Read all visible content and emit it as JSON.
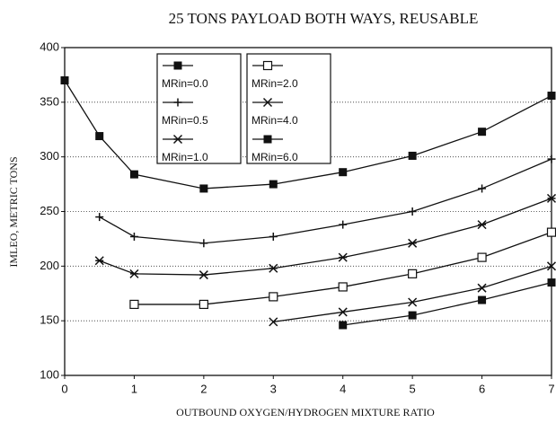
{
  "chart_data": {
    "type": "line",
    "title": "25 TONS PAYLOAD BOTH WAYS, REUSABLE",
    "xlabel": "OUTBOUND OXYGEN/HYDROGEN MIXTURE RATIO",
    "ylabel": "IMLEO, METRIC TONS",
    "x": [
      0,
      0.5,
      1,
      2,
      3,
      4,
      5,
      6,
      7
    ],
    "series": [
      {
        "name": "MRin=0.0",
        "color": "#111111",
        "marker": "square-filled",
        "values": [
          370,
          319,
          284,
          271,
          275,
          286,
          301,
          323,
          356
        ]
      },
      {
        "name": "MRin=0.5",
        "color": "#111111",
        "marker": "plus",
        "values": [
          null,
          245,
          227,
          221,
          227,
          238,
          250,
          271,
          298
        ]
      },
      {
        "name": "MRin=1.0",
        "color": "#111111",
        "marker": "asterisk",
        "values": [
          null,
          205,
          193,
          192,
          198,
          208,
          221,
          238,
          262
        ]
      },
      {
        "name": "MRin=2.0",
        "color": "#111111",
        "marker": "square-open",
        "values": [
          null,
          null,
          165,
          165,
          172,
          181,
          193,
          208,
          231
        ]
      },
      {
        "name": "MRin=4.0",
        "color": "#111111",
        "marker": "x",
        "values": [
          null,
          null,
          null,
          null,
          149,
          158,
          167,
          180,
          200
        ]
      },
      {
        "name": "MRin=6.0",
        "color": "#111111",
        "marker": "square-filled",
        "values": [
          null,
          null,
          null,
          null,
          null,
          146,
          155,
          169,
          185
        ]
      }
    ],
    "xlim": [
      0,
      7
    ],
    "xticks": [
      0,
      1,
      2,
      3,
      4,
      5,
      6,
      7
    ],
    "ylim": [
      100,
      400
    ],
    "yticks": [
      100,
      150,
      200,
      250,
      300,
      350,
      400
    ],
    "grid": true
  }
}
